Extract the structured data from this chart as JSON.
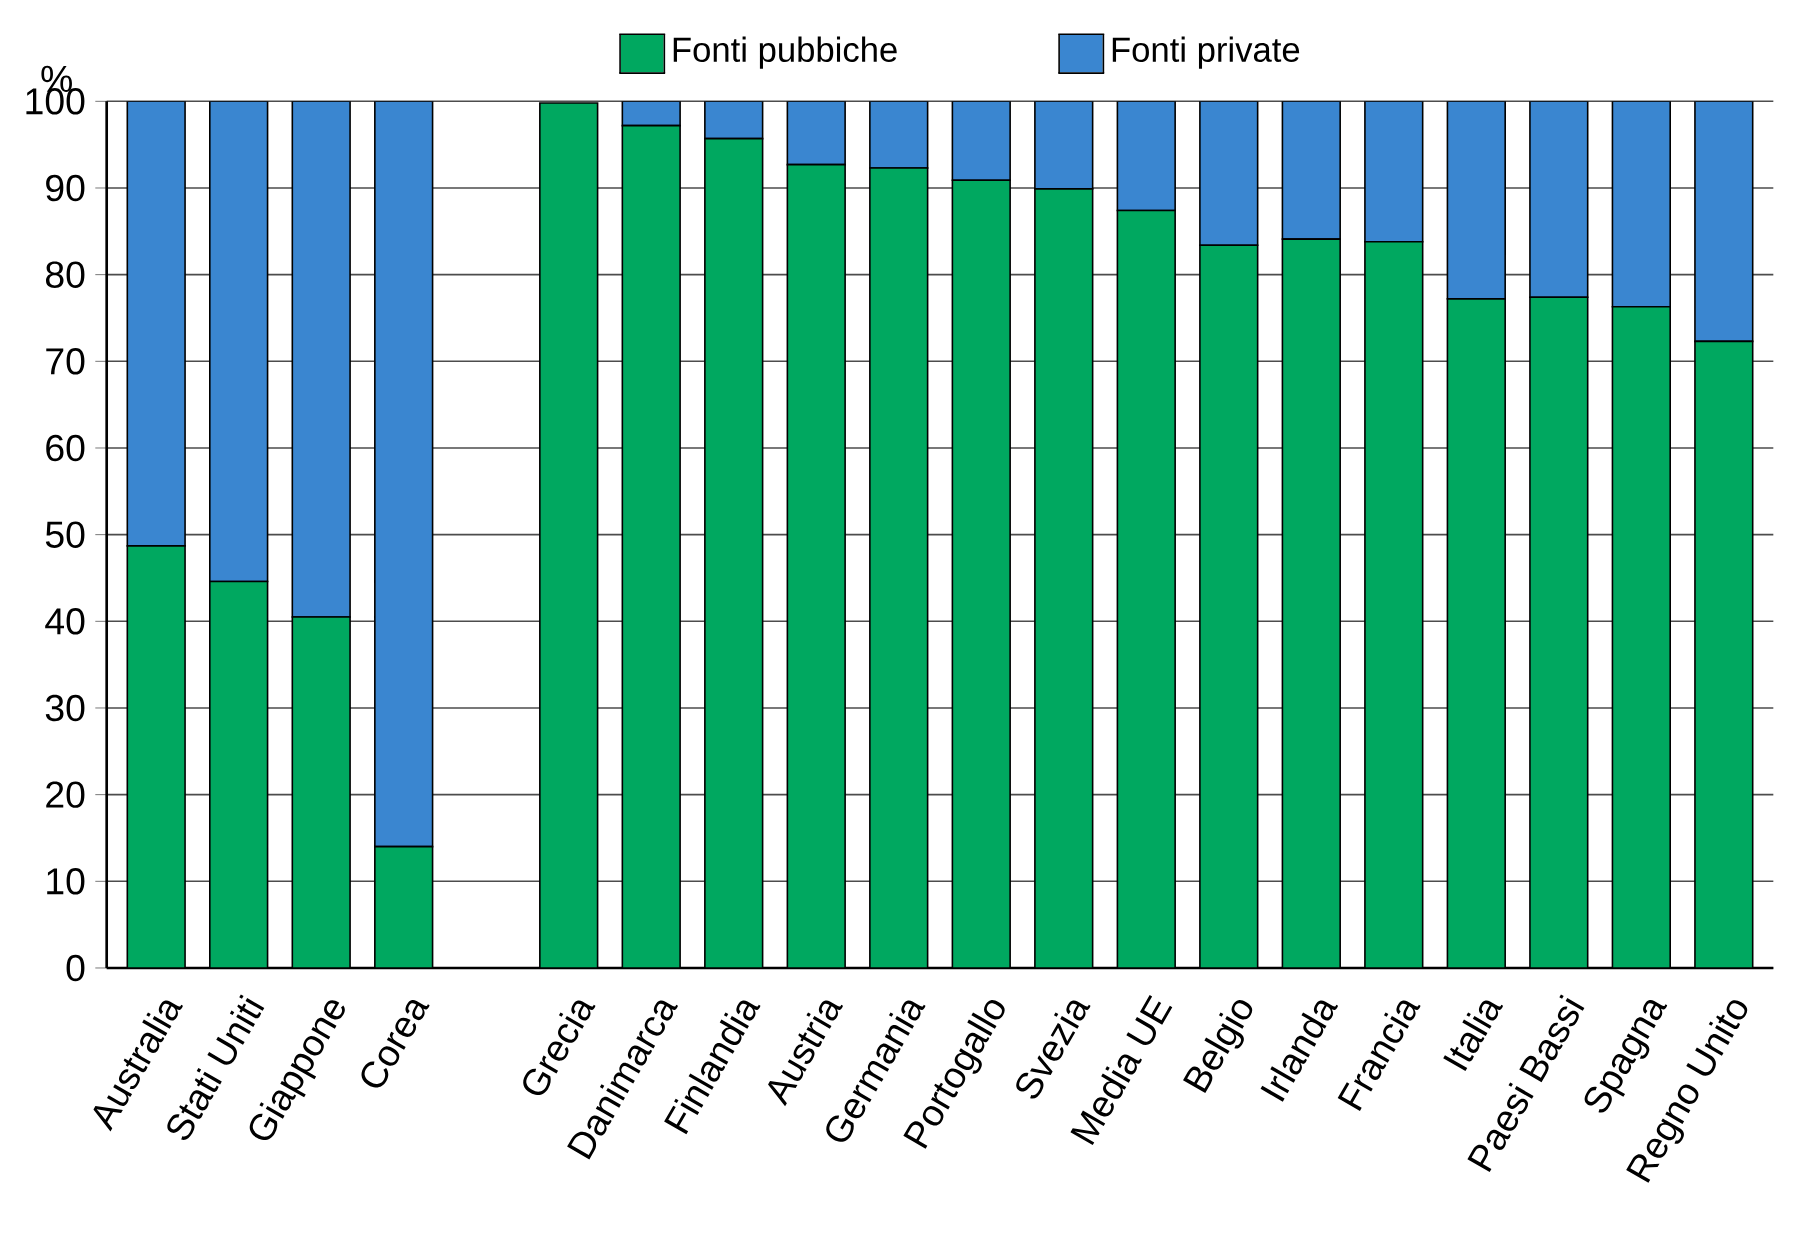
{
  "chart_data": {
    "type": "bar",
    "stacked": true,
    "ylabel": "%",
    "categories": [
      "Australia",
      "Stati Uniti",
      "Giappone",
      "Corea",
      null,
      "Grecia",
      "Danimarca",
      "Finlandia",
      "Austria",
      "Germania",
      "Portogallo",
      "Svezia",
      "Media UE",
      "Belgio",
      "Irlanda",
      "Francia",
      "Italia",
      "Paesi Bassi",
      "Spagna",
      "Regno Unito"
    ],
    "series": [
      {
        "name": "Fonti pubbiche",
        "color": "#00a860",
        "values": [
          48.7,
          44.6,
          40.5,
          14.0,
          null,
          99.8,
          97.2,
          95.7,
          92.7,
          92.3,
          90.9,
          89.9,
          87.4,
          83.4,
          84.1,
          83.8,
          77.2,
          77.4,
          76.3,
          72.3
        ]
      },
      {
        "name": "Fonti private",
        "color": "#3a86d0",
        "values": [
          51.3,
          55.4,
          59.5,
          86.0,
          null,
          null,
          2.8,
          4.3,
          7.3,
          7.7,
          9.1,
          10.1,
          12.6,
          16.6,
          15.9,
          16.2,
          22.8,
          22.6,
          23.7,
          27.7
        ]
      }
    ],
    "ylim": [
      0,
      100
    ],
    "yticks": [
      0,
      10,
      20,
      30,
      40,
      50,
      60,
      70,
      80,
      90,
      100
    ],
    "grid": "y",
    "legend": "top"
  }
}
